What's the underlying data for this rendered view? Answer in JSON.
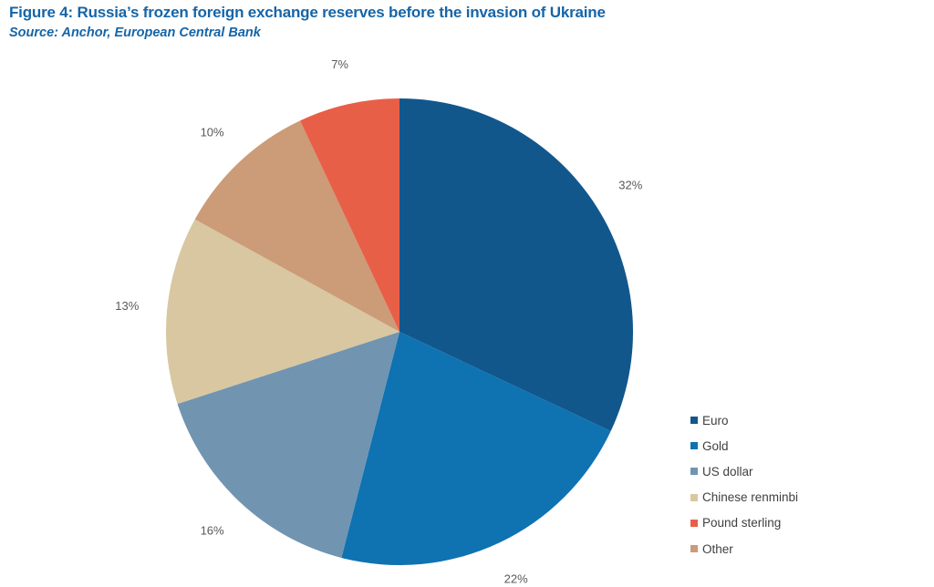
{
  "header": {
    "title": "Figure 4: Russia’s frozen foreign exchange reserves before the invasion of Ukraine",
    "subtitle": "Source: Anchor, European Central Bank"
  },
  "chart_data": {
    "type": "pie",
    "title": "Figure 4: Russia’s frozen foreign exchange reserves before the invasion of Ukraine",
    "legend_position": "right-bottom",
    "slices": [
      {
        "name": "Euro",
        "value": 32,
        "label": "32%",
        "color": "#11578c"
      },
      {
        "name": "Gold",
        "value": 22,
        "label": "22%",
        "color": "#0f72b1"
      },
      {
        "name": "US dollar",
        "value": 16,
        "label": "16%",
        "color": "#7194b1"
      },
      {
        "name": "Chinese renminbi",
        "value": 13,
        "label": "13%",
        "color": "#d8c7a1"
      },
      {
        "name": "Other",
        "value": 10,
        "label": "10%",
        "color": "#cc9b78"
      },
      {
        "name": "Pound sterling",
        "value": 7,
        "label": "7%",
        "color": "#e85f48"
      }
    ],
    "legend": [
      {
        "label": "Euro",
        "color": "#11578c"
      },
      {
        "label": "Gold",
        "color": "#0f72b1"
      },
      {
        "label": "US dollar",
        "color": "#7194b1"
      },
      {
        "label": "Chinese renminbi",
        "color": "#d8c7a1"
      },
      {
        "label": "Pound sterling",
        "color": "#e85f48"
      },
      {
        "label": "Other",
        "color": "#cc9b78"
      }
    ]
  }
}
